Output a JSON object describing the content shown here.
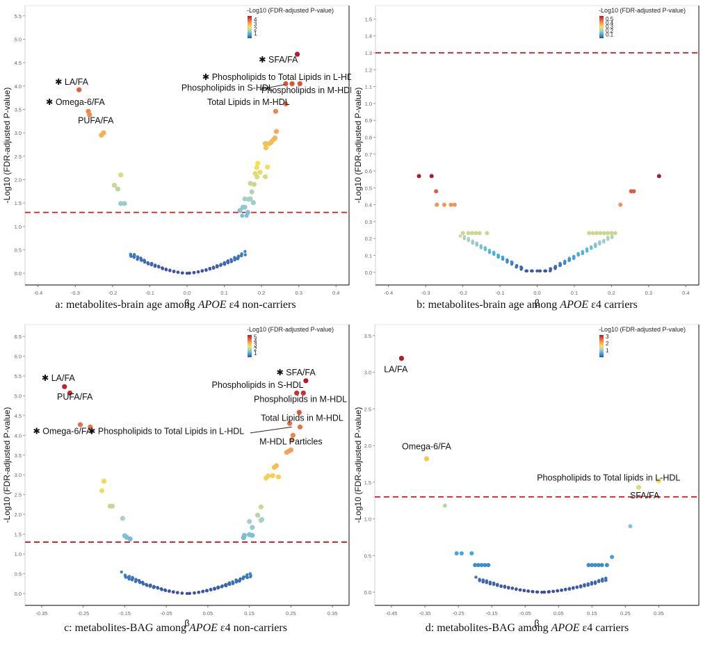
{
  "figure": {
    "legend_title": "-Log10 (FDR-adjusted P-value)",
    "xlabel": "β",
    "ylabel": "-Log10 (FDR-adjusted P-value)",
    "threshold_color": "#d7191c",
    "colormap": [
      "#3b4fa0",
      "#3fa9e0",
      "#a6cfc9",
      "#f5e34a",
      "#f4a259",
      "#e0603e",
      "#b2182b"
    ]
  },
  "chart_data": [
    {
      "id": "a",
      "type": "scatter",
      "title": "",
      "caption_prefix": "a: metabolites-brain age among ",
      "caption_gene": "APOE",
      "caption_suffix": " ε4 non-carriers",
      "xlabel": "β",
      "ylabel": "-Log10 (FDR-adjusted P-value)",
      "xlim": [
        -0.435,
        0.435
      ],
      "ylim": [
        -0.25,
        5.72
      ],
      "xticks": [
        "-0.4",
        "-0.3",
        "-0.2",
        "-0.1",
        "0.0",
        "0.1",
        "0.2",
        "0.3",
        "0.4"
      ],
      "xtick_values": [
        -0.4,
        -0.3,
        -0.2,
        -0.1,
        0.0,
        0.1,
        0.2,
        0.3,
        0.4
      ],
      "yticks": [
        "0.0",
        "0.5",
        "1.0",
        "1.5",
        "2.0",
        "2.5",
        "3.0",
        "3.5",
        "4.0",
        "4.5",
        "5.0",
        "5.5"
      ],
      "ytick_values": [
        0,
        0.5,
        1,
        1.5,
        2,
        2.5,
        3,
        3.5,
        4,
        4.5,
        5,
        5.5
      ],
      "threshold": 1.3,
      "color_max": 4.7,
      "legend_ticks": [
        "4",
        "3",
        "2",
        "1"
      ],
      "legend_tick_values": [
        4,
        3,
        2,
        1
      ],
      "curve": {
        "k": 8.3,
        "halfwidth": 0.15,
        "n": 110
      },
      "points": [
        [
          -0.29,
          3.92
        ],
        [
          -0.265,
          3.46
        ],
        [
          -0.262,
          3.39
        ],
        [
          -0.23,
          2.95
        ],
        [
          -0.224,
          3.0
        ],
        [
          -0.195,
          1.88
        ],
        [
          -0.186,
          1.8
        ],
        [
          -0.178,
          2.1
        ],
        [
          -0.178,
          1.49
        ],
        [
          -0.168,
          1.49
        ],
        [
          0.296,
          4.68
        ],
        [
          0.265,
          4.05
        ],
        [
          0.282,
          4.05
        ],
        [
          0.303,
          4.05
        ],
        [
          0.265,
          3.62
        ],
        [
          0.238,
          3.46
        ],
        [
          0.24,
          3.03
        ],
        [
          0.236,
          2.89
        ],
        [
          0.233,
          2.86
        ],
        [
          0.228,
          2.82
        ],
        [
          0.225,
          2.79
        ],
        [
          0.22,
          2.77
        ],
        [
          0.212,
          2.68
        ],
        [
          0.21,
          2.77
        ],
        [
          0.19,
          2.35
        ],
        [
          0.187,
          2.26
        ],
        [
          0.216,
          2.27
        ],
        [
          0.196,
          2.16
        ],
        [
          0.183,
          2.13
        ],
        [
          0.188,
          2.06
        ],
        [
          0.21,
          2.06
        ],
        [
          0.17,
          1.92
        ],
        [
          0.18,
          1.9
        ],
        [
          0.174,
          1.74
        ],
        [
          0.155,
          1.59
        ],
        [
          0.165,
          1.58
        ],
        [
          0.17,
          1.59
        ],
        [
          0.178,
          1.51
        ],
        [
          0.15,
          1.41
        ],
        [
          0.155,
          1.41
        ],
        [
          0.142,
          1.34
        ],
        [
          0.163,
          1.3
        ],
        [
          0.148,
          1.23
        ],
        [
          0.16,
          1.23
        ]
      ],
      "labels": [
        {
          "text": "✱ LA/FA",
          "x": -0.31,
          "y": 4.03,
          "anchor": "middle"
        },
        {
          "text": "✱ Omega-6/FA",
          "x": -0.3,
          "y": 3.6,
          "anchor": "middle"
        },
        {
          "text": "PUFA/FA",
          "x": -0.245,
          "y": 3.2,
          "anchor": "middle"
        },
        {
          "text": "✱ SFA/FA",
          "x": 0.245,
          "y": 4.5,
          "anchor": "middle"
        },
        {
          "text": "✱ Phospholipids to Total Lipids in L-HDL",
          "x": 0.25,
          "y": 4.13,
          "anchor": "middle"
        },
        {
          "text": "Phospholipids in S-HDL",
          "x": 0.108,
          "y": 3.9,
          "anchor": "middle"
        },
        {
          "text": "Phospholipids in M-HDL",
          "x": 0.325,
          "y": 3.85,
          "anchor": "middle"
        },
        {
          "text": "Total Lipids in M-HDL",
          "x": 0.165,
          "y": 3.6,
          "anchor": "middle"
        }
      ],
      "leader_lines": [
        [
          [
            0.195,
            3.93
          ],
          [
            0.262,
            4.03
          ]
        ]
      ]
    },
    {
      "id": "b",
      "type": "scatter",
      "caption_prefix": "b: metabolites-brain age among ",
      "caption_gene": "APOE",
      "caption_suffix": " ε4 carriers",
      "xlabel": "β",
      "ylabel": "-Log10 (FDR-adjusted P-value)",
      "xlim": [
        -0.435,
        0.435
      ],
      "ylim": [
        -0.075,
        1.58
      ],
      "xticks": [
        "-0.4",
        "-0.3",
        "-0.2",
        "-0.1",
        "0.0",
        "0.1",
        "0.2",
        "0.3",
        "0.4"
      ],
      "xtick_values": [
        -0.4,
        -0.3,
        -0.2,
        -0.1,
        0.0,
        0.1,
        0.2,
        0.3,
        0.4
      ],
      "yticks": [
        "0.0",
        "0.1",
        "0.2",
        "0.3",
        "0.4",
        "0.5",
        "0.6",
        "0.7",
        "0.8",
        "0.9",
        "1.0",
        "1.1",
        "1.2",
        "1.3",
        "1.4",
        "1.5"
      ],
      "ytick_values": [
        0,
        0.1,
        0.2,
        0.3,
        0.4,
        0.5,
        0.6,
        0.7,
        0.8,
        0.9,
        1.0,
        1.1,
        1.2,
        1.3,
        1.4,
        1.5
      ],
      "threshold": 1.3,
      "color_max": 0.57,
      "legend_ticks": [
        "0.5",
        "0.4",
        "0.3",
        "0.2",
        "0.1"
      ],
      "legend_tick_values": [
        0.5,
        0.4,
        0.3,
        0.2,
        0.1
      ],
      "curve": {
        "k": 2.0,
        "halfwidth": 0.2,
        "n": 120,
        "flat": 0.03,
        "cap": 0.232
      },
      "points": [
        [
          -0.318,
          0.57
        ],
        [
          -0.284,
          0.57
        ],
        [
          -0.272,
          0.48
        ],
        [
          -0.27,
          0.4
        ],
        [
          -0.25,
          0.4
        ],
        [
          -0.232,
          0.4
        ],
        [
          -0.222,
          0.4
        ],
        [
          0.328,
          0.57
        ],
        [
          0.253,
          0.48
        ],
        [
          0.26,
          0.48
        ],
        [
          0.224,
          0.4
        ],
        [
          -0.2,
          0.232
        ],
        [
          -0.185,
          0.232
        ],
        [
          -0.175,
          0.232
        ],
        [
          -0.165,
          0.232
        ],
        [
          -0.155,
          0.232
        ],
        [
          -0.135,
          0.232
        ],
        [
          0.14,
          0.232
        ],
        [
          0.15,
          0.232
        ],
        [
          0.16,
          0.232
        ],
        [
          0.17,
          0.232
        ],
        [
          0.18,
          0.232
        ],
        [
          0.19,
          0.232
        ],
        [
          0.2,
          0.232
        ],
        [
          0.21,
          0.232
        ]
      ],
      "labels": [],
      "leader_lines": []
    },
    {
      "id": "c",
      "type": "scatter",
      "caption_prefix": "c: metabolites-BAG among ",
      "caption_gene": "APOE",
      "caption_suffix": " ε4 non-carriers",
      "xlabel": "β",
      "ylabel": "-Log10 (FDR-adjusted P-value)",
      "xlim": [
        -0.39,
        0.39
      ],
      "ylim": [
        -0.3,
        6.8
      ],
      "xticks": [
        "-0.35",
        "-0.25",
        "-0.15",
        "-0.05",
        "0.05",
        "0.15",
        "0.25",
        "0.35"
      ],
      "xtick_values": [
        -0.35,
        -0.25,
        -0.15,
        -0.05,
        0.05,
        0.15,
        0.25,
        0.35
      ],
      "yticks": [
        "0.0",
        "0.5",
        "1.0",
        "1.5",
        "2.0",
        "2.5",
        "3.0",
        "3.5",
        "4.0",
        "4.5",
        "5.0",
        "5.5",
        "6.0",
        "6.5"
      ],
      "ytick_values": [
        0,
        0.5,
        1,
        1.5,
        2,
        2.5,
        3,
        3.5,
        4,
        4.5,
        5,
        5.5,
        6,
        6.5
      ],
      "threshold": 1.3,
      "color_max": 5.4,
      "legend_ticks": [
        "5",
        "4",
        "3",
        "2",
        "1"
      ],
      "legend_tick_values": [
        5,
        4,
        3,
        2,
        1
      ],
      "curve": {
        "k": 9.5,
        "halfwidth": 0.15,
        "n": 120
      },
      "points": [
        [
          -0.295,
          5.23
        ],
        [
          -0.282,
          5.07
        ],
        [
          -0.257,
          4.27
        ],
        [
          -0.233,
          4.21
        ],
        [
          0.286,
          5.38
        ],
        [
          0.264,
          5.07
        ],
        [
          0.28,
          5.07
        ],
        [
          0.27,
          4.58
        ],
        [
          0.247,
          4.3
        ],
        [
          0.272,
          4.21
        ],
        [
          0.255,
          4.0
        ],
        [
          0.252,
          3.88
        ],
        [
          0.245,
          3.6
        ],
        [
          0.24,
          3.57
        ],
        [
          0.25,
          3.63
        ],
        [
          0.215,
          3.23
        ],
        [
          0.21,
          3.19
        ],
        [
          0.19,
          2.92
        ],
        [
          0.195,
          2.97
        ],
        [
          0.206,
          2.98
        ],
        [
          0.22,
          2.95
        ],
        [
          -0.2,
          2.84
        ],
        [
          -0.205,
          2.6
        ],
        [
          -0.185,
          2.21
        ],
        [
          -0.18,
          2.21
        ],
        [
          -0.155,
          1.9
        ],
        [
          0.178,
          2.19
        ],
        [
          0.17,
          1.98
        ],
        [
          0.18,
          1.87
        ],
        [
          0.178,
          1.85
        ],
        [
          0.15,
          1.82
        ],
        [
          0.157,
          1.67
        ],
        [
          0.15,
          1.49
        ],
        [
          0.157,
          1.47
        ],
        [
          0.138,
          1.47
        ],
        [
          0.136,
          1.41
        ],
        [
          -0.15,
          1.46
        ],
        [
          -0.145,
          1.42
        ],
        [
          -0.137,
          1.38
        ]
      ],
      "labels": [
        {
          "text": "✱ LA/FA",
          "x": -0.31,
          "y": 5.38,
          "anchor": "middle"
        },
        {
          "text": "PUFA/FA",
          "x": -0.27,
          "y": 4.9,
          "anchor": "middle"
        },
        {
          "text": "✱ Omega-6/FA",
          "x": -0.3,
          "y": 4.03,
          "anchor": "middle"
        },
        {
          "text": "✱ Phospholipids to Total Lipids in L-HDL",
          "x": -0.05,
          "y": 4.03,
          "anchor": "middle"
        },
        {
          "text": "✱ SFA/FA",
          "x": 0.262,
          "y": 5.52,
          "anchor": "middle"
        },
        {
          "text": "Phospholipids in S-HDL",
          "x": 0.17,
          "y": 5.2,
          "anchor": "middle"
        },
        {
          "text": "Phospholipids in M-HDL",
          "x": 0.273,
          "y": 4.84,
          "anchor": "middle"
        },
        {
          "text": "Total Lipids in M-HDL",
          "x": 0.277,
          "y": 4.37,
          "anchor": "middle"
        },
        {
          "text": "M-HDL Particles",
          "x": 0.25,
          "y": 3.77,
          "anchor": "middle"
        }
      ],
      "leader_lines": [
        [
          [
            0.152,
            4.06
          ],
          [
            0.252,
            4.21
          ]
        ]
      ]
    },
    {
      "id": "d",
      "type": "scatter",
      "caption_prefix": "d: metabolites-BAG among ",
      "caption_gene": "APOE",
      "caption_suffix": " ε4 carriers",
      "xlabel": "β",
      "ylabel": "-Log10 (FDR-adjusted P-value)",
      "xlim": [
        -0.5,
        0.47
      ],
      "ylim": [
        -0.18,
        3.65
      ],
      "xticks": [
        "-0.45",
        "-0.35",
        "-0.25",
        "-0.15",
        "-0.05",
        "0.05",
        "0.15",
        "0.25",
        "0.35"
      ],
      "xtick_values": [
        -0.45,
        -0.35,
        -0.25,
        -0.15,
        -0.05,
        0.05,
        0.15,
        0.25,
        0.35
      ],
      "yticks": [
        "0.0",
        "0.5",
        "1.0",
        "1.5",
        "2.0",
        "2.5",
        "3.0",
        "3.5"
      ],
      "ytick_values": [
        0,
        0.5,
        1,
        1.5,
        2,
        2.5,
        3,
        3.5
      ],
      "threshold": 1.3,
      "color_max": 3.2,
      "legend_ticks": [
        "3",
        "2",
        "1"
      ],
      "legend_tick_values": [
        3,
        2,
        1
      ],
      "curve": {
        "k": 2.5,
        "halfwidth": 0.19,
        "n": 120,
        "cap": 0.37
      },
      "points": [
        [
          -0.42,
          3.19
        ],
        [
          -0.345,
          1.82
        ],
        [
          -0.29,
          1.18
        ],
        [
          0.29,
          1.43
        ],
        [
          0.35,
          1.52
        ],
        [
          0.265,
          0.9
        ],
        [
          -0.255,
          0.53
        ],
        [
          -0.24,
          0.53
        ],
        [
          -0.21,
          0.53
        ],
        [
          0.21,
          0.48
        ],
        [
          -0.2,
          0.37
        ],
        [
          -0.19,
          0.37
        ],
        [
          -0.18,
          0.37
        ],
        [
          -0.17,
          0.37
        ],
        [
          -0.16,
          0.37
        ],
        [
          0.14,
          0.37
        ],
        [
          0.15,
          0.37
        ],
        [
          0.16,
          0.37
        ],
        [
          0.17,
          0.37
        ],
        [
          0.18,
          0.37
        ],
        [
          0.195,
          0.37
        ]
      ],
      "labels": [
        {
          "text": "LA/FA",
          "x": -0.437,
          "y": 3.0,
          "anchor": "middle"
        },
        {
          "text": "Omega-6/FA",
          "x": -0.345,
          "y": 1.95,
          "anchor": "middle"
        },
        {
          "text": "Phospholipids to Total lipids in L-HDL",
          "x": 0.2,
          "y": 1.52,
          "anchor": "middle"
        },
        {
          "text": "SFA/FA",
          "x": 0.308,
          "y": 1.28,
          "anchor": "middle"
        }
      ],
      "leader_lines": []
    }
  ]
}
